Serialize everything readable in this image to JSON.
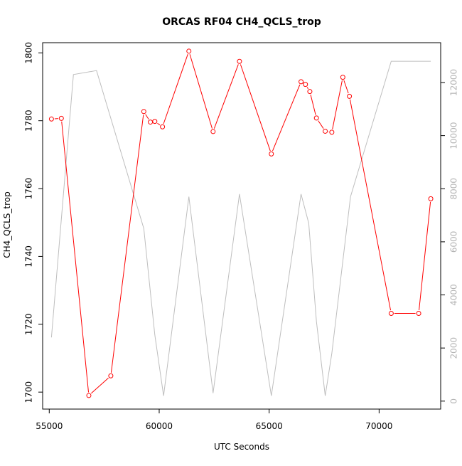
{
  "chart_data": {
    "type": "line",
    "title": "ORCAS RF04 CH4_QCLS_trop",
    "xlabel": "UTC Seconds",
    "ylabel": "CH4_QCLS_trop",
    "xlim": [
      54700,
      72800
    ],
    "ylim": [
      1695,
      1803
    ],
    "y2lim": [
      -300,
      13500
    ],
    "x_ticks": [
      55000,
      60000,
      65000,
      70000
    ],
    "y_ticks": [
      1700,
      1720,
      1740,
      1760,
      1780,
      1800
    ],
    "y2_ticks": [
      0,
      2000,
      4000,
      6000,
      8000,
      10000,
      12000
    ],
    "series": [
      {
        "axis": "left",
        "color": "#ff0000",
        "markers": true,
        "points": [
          [
            55100,
            1780.5
          ],
          [
            55550,
            1780.7
          ],
          [
            56800,
            1699
          ],
          [
            57800,
            1704.8
          ],
          [
            59300,
            1782.7
          ],
          [
            59600,
            1779.6
          ],
          [
            59800,
            1779.8
          ],
          [
            60150,
            1778.2
          ],
          [
            61350,
            1800.5
          ],
          [
            62450,
            1776.8
          ],
          [
            63650,
            1797.5
          ],
          [
            65100,
            1770.2
          ],
          [
            66450,
            1791.5
          ],
          [
            66650,
            1790.7
          ],
          [
            66850,
            1788.6
          ],
          [
            67150,
            1780.8
          ],
          [
            67550,
            1776.9
          ],
          [
            67850,
            1776.6
          ],
          [
            68350,
            1792.8
          ],
          [
            68650,
            1787.2
          ],
          [
            70550,
            1723.2
          ],
          [
            71800,
            1723.2
          ],
          [
            72350,
            1757
          ]
        ]
      },
      {
        "axis": "right",
        "color": "#bebebe",
        "markers": false,
        "points": [
          [
            55100,
            2400
          ],
          [
            56100,
            12300
          ],
          [
            57150,
            12450
          ],
          [
            59300,
            6500
          ],
          [
            59800,
            2500
          ],
          [
            60200,
            200
          ],
          [
            61350,
            7700
          ],
          [
            62450,
            300
          ],
          [
            63650,
            7800
          ],
          [
            65100,
            200
          ],
          [
            66450,
            7800
          ],
          [
            66800,
            6700
          ],
          [
            67150,
            3000
          ],
          [
            67550,
            200
          ],
          [
            67850,
            1800
          ],
          [
            68700,
            7700
          ],
          [
            70550,
            12800
          ],
          [
            72350,
            12800
          ]
        ]
      }
    ]
  }
}
